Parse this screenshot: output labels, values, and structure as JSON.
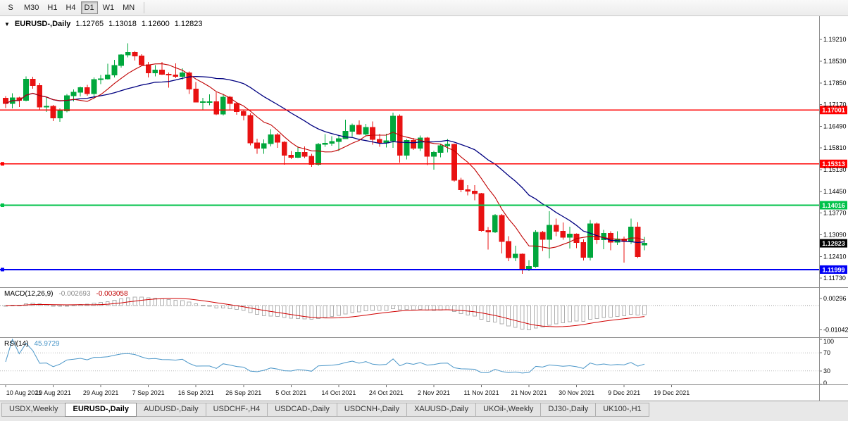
{
  "toolbar": {
    "timeframes": [
      {
        "label": "S",
        "active": false
      },
      {
        "label": "M30",
        "active": false
      },
      {
        "label": "H1",
        "active": false
      },
      {
        "label": "H4",
        "active": false
      },
      {
        "label": "D1",
        "active": true
      },
      {
        "label": "W1",
        "active": false
      },
      {
        "label": "MN",
        "active": false
      }
    ]
  },
  "chart_header": {
    "collapse_icon": "▼",
    "title": "EURUSD-,Daily",
    "open": "1.12765",
    "high": "1.13018",
    "low": "1.12600",
    "close": "1.12823"
  },
  "macd_header": {
    "name": "MACD(12,26,9)",
    "main_value": "-0.002693",
    "signal_value": "-0.003058"
  },
  "rsi_header": {
    "name": "RSI(14)",
    "value": "45.9729"
  },
  "price_axis": {
    "labels": [
      "1.19210",
      "1.18530",
      "1.17850",
      "1.17170",
      "1.16490",
      "1.15810",
      "1.15130",
      "1.14450",
      "1.13770",
      "1.13090",
      "1.12410",
      "1.11730"
    ]
  },
  "macd_axis": {
    "labels": [
      {
        "text": "0.00296",
        "value": 0.00296
      },
      {
        "text": "-0.01042",
        "value": -0.01042
      }
    ]
  },
  "rsi_axis": {
    "labels": [
      {
        "text": "100",
        "value": 100
      },
      {
        "text": "70",
        "value": 70
      },
      {
        "text": "30",
        "value": 30
      },
      {
        "text": "0",
        "value": 0
      }
    ]
  },
  "date_axis": [
    {
      "text": "10 Aug 2021",
      "idx": 0
    },
    {
      "text": "19 Aug 2021",
      "idx": 7
    },
    {
      "text": "29 Aug 2021",
      "idx": 14
    },
    {
      "text": "7 Sep 2021",
      "idx": 21
    },
    {
      "text": "16 Sep 2021",
      "idx": 28
    },
    {
      "text": "26 Sep 2021",
      "idx": 35
    },
    {
      "text": "5 Oct 2021",
      "idx": 42
    },
    {
      "text": "14 Oct 2021",
      "idx": 49
    },
    {
      "text": "24 Oct 2021",
      "idx": 56
    },
    {
      "text": "2 Nov 2021",
      "idx": 63
    },
    {
      "text": "11 Nov 2021",
      "idx": 70
    },
    {
      "text": "21 Nov 2021",
      "idx": 77
    },
    {
      "text": "30 Nov 2021",
      "idx": 84
    },
    {
      "text": "9 Dec 2021",
      "idx": 91
    },
    {
      "text": "19 Dec 2021",
      "idx": 98
    }
  ],
  "tabs": [
    {
      "label": "USDX,Weekly",
      "active": false
    },
    {
      "label": "EURUSD-,Daily",
      "active": true
    },
    {
      "label": "AUDUSD-,Daily",
      "active": false
    },
    {
      "label": "USDCHF-,H4",
      "active": false
    },
    {
      "label": "USDCAD-,Daily",
      "active": false
    },
    {
      "label": "USDCNH-,Daily",
      "active": false
    },
    {
      "label": "XAUUSD-,Daily",
      "active": false
    },
    {
      "label": "UKOil-,Weekly",
      "active": false
    },
    {
      "label": "DJ30-,Daily",
      "active": false
    },
    {
      "label": "UK100-,H1",
      "active": false
    }
  ],
  "chart_data": {
    "type": "candlestick",
    "symbol": "EURUSD-",
    "timeframe": "Daily",
    "price_range": {
      "min": 1.116,
      "max": 1.195
    },
    "current_price": {
      "value": 1.12823,
      "label": "1.12823"
    },
    "hlines": [
      {
        "value": 1.17001,
        "label": "1.17001",
        "color": "#FF0000",
        "width": 1.4,
        "handle": false
      },
      {
        "value": 1.15313,
        "label": "1.15313",
        "color": "#FF0000",
        "width": 1.4,
        "handle": true
      },
      {
        "value": 1.14016,
        "label": "1.14016",
        "color": "#00C24A",
        "width": 2,
        "handle": true
      },
      {
        "value": 1.11999,
        "label": "1.11999",
        "color": "#0000F5",
        "width": 2,
        "handle": true
      }
    ],
    "indicator_params": {
      "ma_fast_period": 8,
      "ma_slow_period": 20,
      "macd": {
        "fast": 12,
        "slow": 26,
        "signal": 9
      },
      "rsi": {
        "period": 14
      }
    },
    "colors": {
      "up": "#00A73C",
      "down": "#E81212",
      "ma_fast": "#C00000",
      "ma_slow": "#000080",
      "macd_hist": "#AFAFAF",
      "macd_signal": "#D00000",
      "rsi": "#4A96C8",
      "current_price_bg": "#000000"
    },
    "dates": [
      "2021.08.10",
      "2021.08.11",
      "2021.08.12",
      "2021.08.13",
      "2021.08.16",
      "2021.08.17",
      "2021.08.18",
      "2021.08.19",
      "2021.08.20",
      "2021.08.23",
      "2021.08.24",
      "2021.08.25",
      "2021.08.26",
      "2021.08.27",
      "2021.08.30",
      "2021.08.31",
      "2021.09.01",
      "2021.09.02",
      "2021.09.03",
      "2021.09.06",
      "2021.09.07",
      "2021.09.08",
      "2021.09.09",
      "2021.09.10",
      "2021.09.13",
      "2021.09.14",
      "2021.09.15",
      "2021.09.16",
      "2021.09.17",
      "2021.09.20",
      "2021.09.21",
      "2021.09.22",
      "2021.09.23",
      "2021.09.24",
      "2021.09.27",
      "2021.09.28",
      "2021.09.29",
      "2021.09.30",
      "2021.10.01",
      "2021.10.04",
      "2021.10.05",
      "2021.10.06",
      "2021.10.07",
      "2021.10.08",
      "2021.10.11",
      "2021.10.12",
      "2021.10.13",
      "2021.10.14",
      "2021.10.15",
      "2021.10.18",
      "2021.10.19",
      "2021.10.20",
      "2021.10.21",
      "2021.10.22",
      "2021.10.25",
      "2021.10.26",
      "2021.10.27",
      "2021.10.28",
      "2021.10.29",
      "2021.11.01",
      "2021.11.02",
      "2021.11.03",
      "2021.11.04",
      "2021.11.05",
      "2021.11.08",
      "2021.11.09",
      "2021.11.10",
      "2021.11.11",
      "2021.11.12",
      "2021.11.15",
      "2021.11.16",
      "2021.11.17",
      "2021.11.18",
      "2021.11.19",
      "2021.11.22",
      "2021.11.23",
      "2021.11.24",
      "2021.11.25",
      "2021.11.26",
      "2021.11.29",
      "2021.11.30",
      "2021.12.01",
      "2021.12.02",
      "2021.12.03",
      "2021.12.06",
      "2021.12.07",
      "2021.12.08",
      "2021.12.09",
      "2021.12.10",
      "2021.12.13",
      "2021.12.14",
      "2021.12.15",
      "2021.12.16",
      "2021.12.17",
      "2021.12.20"
    ],
    "candles": [
      [
        1.1737,
        1.1744,
        1.1706,
        1.1721
      ],
      [
        1.1721,
        1.1753,
        1.1705,
        1.1738
      ],
      [
        1.1738,
        1.1742,
        1.1709,
        1.173
      ],
      [
        1.173,
        1.1805,
        1.1727,
        1.1797
      ],
      [
        1.1797,
        1.1804,
        1.1767,
        1.1777
      ],
      [
        1.1777,
        1.1785,
        1.1702,
        1.171
      ],
      [
        1.171,
        1.1742,
        1.1694,
        1.1712
      ],
      [
        1.1712,
        1.1716,
        1.1665,
        1.1675
      ],
      [
        1.1675,
        1.1705,
        1.1663,
        1.1697
      ],
      [
        1.1697,
        1.175,
        1.1693,
        1.1745
      ],
      [
        1.1745,
        1.1765,
        1.1727,
        1.1756
      ],
      [
        1.1756,
        1.1774,
        1.1743,
        1.177
      ],
      [
        1.177,
        1.1779,
        1.1745,
        1.1751
      ],
      [
        1.1751,
        1.1802,
        1.1735,
        1.1796
      ],
      [
        1.1796,
        1.181,
        1.1781,
        1.1798
      ],
      [
        1.1798,
        1.1845,
        1.1795,
        1.181
      ],
      [
        1.181,
        1.1857,
        1.1802,
        1.184
      ],
      [
        1.184,
        1.1875,
        1.1833,
        1.1873
      ],
      [
        1.1873,
        1.1909,
        1.1865,
        1.188
      ],
      [
        1.188,
        1.1885,
        1.1855,
        1.187
      ],
      [
        1.187,
        1.1875,
        1.1838,
        1.1842
      ],
      [
        1.1842,
        1.1851,
        1.1802,
        1.1817
      ],
      [
        1.1817,
        1.1841,
        1.1805,
        1.1825
      ],
      [
        1.1825,
        1.1851,
        1.181,
        1.1812
      ],
      [
        1.1812,
        1.1818,
        1.177,
        1.181
      ],
      [
        1.181,
        1.1846,
        1.18,
        1.1805
      ],
      [
        1.1805,
        1.1831,
        1.1795,
        1.1816
      ],
      [
        1.1816,
        1.1821,
        1.175,
        1.1766
      ],
      [
        1.1766,
        1.1788,
        1.1724,
        1.1725
      ],
      [
        1.1725,
        1.1738,
        1.17,
        1.1726
      ],
      [
        1.1726,
        1.1749,
        1.1715,
        1.1726
      ],
      [
        1.1726,
        1.1756,
        1.1684,
        1.1687
      ],
      [
        1.1687,
        1.175,
        1.1683,
        1.174
      ],
      [
        1.174,
        1.1745,
        1.1701,
        1.172
      ],
      [
        1.172,
        1.1722,
        1.1685,
        1.1695
      ],
      [
        1.1695,
        1.17,
        1.1667,
        1.1683
      ],
      [
        1.1683,
        1.169,
        1.1589,
        1.1597
      ],
      [
        1.1597,
        1.161,
        1.1563,
        1.158
      ],
      [
        1.158,
        1.1608,
        1.1563,
        1.1595
      ],
      [
        1.1595,
        1.164,
        1.1586,
        1.1622
      ],
      [
        1.1622,
        1.1628,
        1.1581,
        1.1599
      ],
      [
        1.1599,
        1.1602,
        1.1529,
        1.1558
      ],
      [
        1.1558,
        1.1572,
        1.1546,
        1.1552
      ],
      [
        1.1552,
        1.1586,
        1.155,
        1.1567
      ],
      [
        1.1567,
        1.1586,
        1.1549,
        1.1555
      ],
      [
        1.1555,
        1.1563,
        1.1522,
        1.153
      ],
      [
        1.153,
        1.1597,
        1.1525,
        1.1592
      ],
      [
        1.1592,
        1.1624,
        1.1585,
        1.1596
      ],
      [
        1.1596,
        1.1618,
        1.1588,
        1.1601
      ],
      [
        1.1601,
        1.1621,
        1.1572,
        1.161
      ],
      [
        1.161,
        1.167,
        1.1609,
        1.1633
      ],
      [
        1.1633,
        1.1658,
        1.1617,
        1.1652
      ],
      [
        1.1652,
        1.1667,
        1.1622,
        1.1624
      ],
      [
        1.1624,
        1.1656,
        1.162,
        1.1645
      ],
      [
        1.1645,
        1.1664,
        1.1591,
        1.1608
      ],
      [
        1.1608,
        1.1626,
        1.1585,
        1.1597
      ],
      [
        1.1597,
        1.1626,
        1.1583,
        1.1603
      ],
      [
        1.1603,
        1.1692,
        1.1582,
        1.1681
      ],
      [
        1.1681,
        1.1686,
        1.1535,
        1.1558
      ],
      [
        1.1558,
        1.1609,
        1.1545,
        1.1605
      ],
      [
        1.1605,
        1.1612,
        1.1575,
        1.158
      ],
      [
        1.158,
        1.162,
        1.1572,
        1.1612
      ],
      [
        1.1612,
        1.1616,
        1.1527,
        1.1555
      ],
      [
        1.1555,
        1.1573,
        1.1513,
        1.1567
      ],
      [
        1.1567,
        1.1595,
        1.1552,
        1.1588
      ],
      [
        1.1588,
        1.1609,
        1.1567,
        1.1592
      ],
      [
        1.1592,
        1.1595,
        1.1476,
        1.148
      ],
      [
        1.148,
        1.1488,
        1.1443,
        1.145
      ],
      [
        1.145,
        1.1464,
        1.1433,
        1.1446
      ],
      [
        1.1446,
        1.1464,
        1.1417,
        1.1438
      ],
      [
        1.1438,
        1.144,
        1.1319,
        1.1322
      ],
      [
        1.1322,
        1.1333,
        1.1263,
        1.1318
      ],
      [
        1.1318,
        1.1374,
        1.1314,
        1.137
      ],
      [
        1.137,
        1.1374,
        1.125,
        1.1288
      ],
      [
        1.1288,
        1.1305,
        1.1226,
        1.1237
      ],
      [
        1.1237,
        1.1275,
        1.1226,
        1.1248
      ],
      [
        1.1248,
        1.125,
        1.1186,
        1.12
      ],
      [
        1.12,
        1.123,
        1.1195,
        1.121
      ],
      [
        1.121,
        1.1323,
        1.1205,
        1.1317
      ],
      [
        1.1317,
        1.1321,
        1.1258,
        1.1295
      ],
      [
        1.1295,
        1.1383,
        1.1235,
        1.1339
      ],
      [
        1.1339,
        1.136,
        1.1305,
        1.132
      ],
      [
        1.132,
        1.1348,
        1.1293,
        1.1301
      ],
      [
        1.1301,
        1.1334,
        1.1266,
        1.1311
      ],
      [
        1.1311,
        1.1313,
        1.1267,
        1.1285
      ],
      [
        1.1285,
        1.1295,
        1.1228,
        1.1238
      ],
      [
        1.1238,
        1.1355,
        1.1228,
        1.1343
      ],
      [
        1.1343,
        1.1348,
        1.128,
        1.1294
      ],
      [
        1.1294,
        1.1324,
        1.1264,
        1.1313
      ],
      [
        1.1313,
        1.132,
        1.126,
        1.1286
      ],
      [
        1.1286,
        1.132,
        1.1277,
        1.1296
      ],
      [
        1.1296,
        1.1303,
        1.1222,
        1.1288
      ],
      [
        1.1288,
        1.136,
        1.128,
        1.1333
      ],
      [
        1.1333,
        1.1349,
        1.1236,
        1.124
      ],
      [
        1.12765,
        1.13018,
        1.126,
        1.12823
      ]
    ]
  }
}
